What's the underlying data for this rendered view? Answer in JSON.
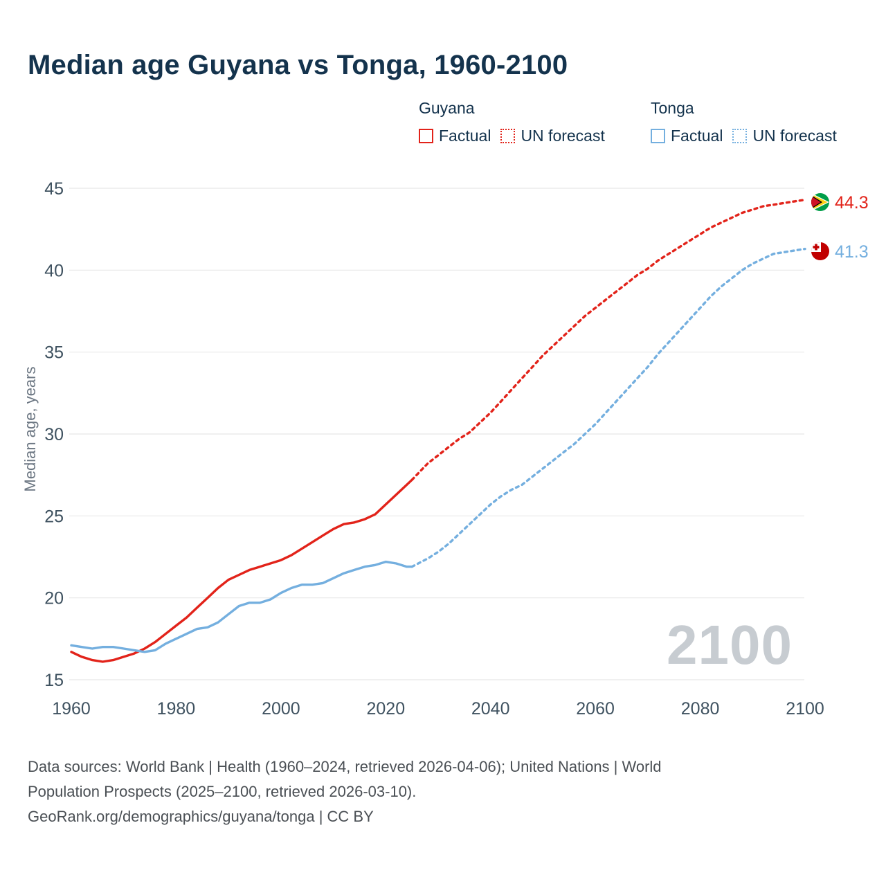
{
  "title": "Median age Guyana vs Tonga, 1960-2100",
  "legend": {
    "groups": [
      {
        "name": "Guyana",
        "color": "#e2231a",
        "items": [
          {
            "label": "Factual",
            "style": "solid"
          },
          {
            "label": "UN forecast",
            "style": "dashed"
          }
        ]
      },
      {
        "name": "Tonga",
        "color": "#74afdf",
        "items": [
          {
            "label": "Factual",
            "style": "solid"
          },
          {
            "label": "UN forecast",
            "style": "dashed"
          }
        ]
      }
    ]
  },
  "y_axis_label": "Median age, years",
  "watermark": "2100",
  "end_labels": [
    {
      "country": "Guyana",
      "value": "44.3",
      "color": "#e2231a"
    },
    {
      "country": "Tonga",
      "value": "41.3",
      "color": "#74afdf"
    }
  ],
  "footer": {
    "lines": [
      "Data sources: World Bank | Health (1960–2024, retrieved 2026-04-06); United Nations | World",
      "Population Prospects (2025–2100, retrieved 2026-03-10).",
      "GeoRank.org/demographics/guyana/tonga | CC BY"
    ]
  },
  "chart_data": {
    "type": "line",
    "title": "Median age Guyana vs Tonga, 1960-2100",
    "xlabel": "",
    "ylabel": "Median age, years",
    "xlim": [
      1955,
      2110
    ],
    "ylim": [
      15,
      45
    ],
    "x_ticks": [
      1960,
      1980,
      2000,
      2020,
      2040,
      2060,
      2080,
      2100
    ],
    "y_ticks": [
      15,
      20,
      25,
      30,
      35,
      40,
      45
    ],
    "grid": "horizontal",
    "legend_position": "top-right",
    "series": [
      {
        "name": "Guyana Factual",
        "color": "#e2231a",
        "style": "solid",
        "points": [
          [
            1960,
            16.7
          ],
          [
            1962,
            16.4
          ],
          [
            1964,
            16.2
          ],
          [
            1966,
            16.1
          ],
          [
            1968,
            16.2
          ],
          [
            1970,
            16.4
          ],
          [
            1972,
            16.6
          ],
          [
            1974,
            16.9
          ],
          [
            1976,
            17.3
          ],
          [
            1978,
            17.8
          ],
          [
            1980,
            18.3
          ],
          [
            1982,
            18.8
          ],
          [
            1984,
            19.4
          ],
          [
            1986,
            20.0
          ],
          [
            1988,
            20.6
          ],
          [
            1990,
            21.1
          ],
          [
            1992,
            21.4
          ],
          [
            1994,
            21.7
          ],
          [
            1996,
            21.9
          ],
          [
            1998,
            22.1
          ],
          [
            2000,
            22.3
          ],
          [
            2002,
            22.6
          ],
          [
            2004,
            23.0
          ],
          [
            2006,
            23.4
          ],
          [
            2008,
            23.8
          ],
          [
            2010,
            24.2
          ],
          [
            2012,
            24.5
          ],
          [
            2014,
            24.6
          ],
          [
            2016,
            24.8
          ],
          [
            2018,
            25.1
          ],
          [
            2020,
            25.7
          ],
          [
            2022,
            26.3
          ],
          [
            2024,
            26.9
          ],
          [
            2025,
            27.2
          ]
        ]
      },
      {
        "name": "Guyana UN forecast",
        "color": "#e2231a",
        "style": "dashed",
        "points": [
          [
            2025,
            27.2
          ],
          [
            2028,
            28.2
          ],
          [
            2030,
            28.7
          ],
          [
            2032,
            29.2
          ],
          [
            2034,
            29.7
          ],
          [
            2036,
            30.1
          ],
          [
            2038,
            30.7
          ],
          [
            2040,
            31.3
          ],
          [
            2042,
            32.0
          ],
          [
            2044,
            32.7
          ],
          [
            2046,
            33.4
          ],
          [
            2048,
            34.1
          ],
          [
            2050,
            34.8
          ],
          [
            2052,
            35.4
          ],
          [
            2054,
            36.0
          ],
          [
            2056,
            36.6
          ],
          [
            2058,
            37.2
          ],
          [
            2060,
            37.7
          ],
          [
            2062,
            38.2
          ],
          [
            2064,
            38.7
          ],
          [
            2066,
            39.2
          ],
          [
            2068,
            39.7
          ],
          [
            2070,
            40.1
          ],
          [
            2072,
            40.6
          ],
          [
            2074,
            41.0
          ],
          [
            2076,
            41.4
          ],
          [
            2078,
            41.8
          ],
          [
            2080,
            42.2
          ],
          [
            2082,
            42.6
          ],
          [
            2084,
            42.9
          ],
          [
            2086,
            43.2
          ],
          [
            2088,
            43.5
          ],
          [
            2090,
            43.7
          ],
          [
            2092,
            43.9
          ],
          [
            2094,
            44.0
          ],
          [
            2096,
            44.1
          ],
          [
            2098,
            44.2
          ],
          [
            2100,
            44.3
          ]
        ]
      },
      {
        "name": "Tonga Factual",
        "color": "#74afdf",
        "style": "solid",
        "points": [
          [
            1960,
            17.1
          ],
          [
            1962,
            17.0
          ],
          [
            1964,
            16.9
          ],
          [
            1966,
            17.0
          ],
          [
            1968,
            17.0
          ],
          [
            1970,
            16.9
          ],
          [
            1972,
            16.8
          ],
          [
            1974,
            16.7
          ],
          [
            1976,
            16.8
          ],
          [
            1978,
            17.2
          ],
          [
            1980,
            17.5
          ],
          [
            1982,
            17.8
          ],
          [
            1984,
            18.1
          ],
          [
            1986,
            18.2
          ],
          [
            1988,
            18.5
          ],
          [
            1990,
            19.0
          ],
          [
            1992,
            19.5
          ],
          [
            1994,
            19.7
          ],
          [
            1996,
            19.7
          ],
          [
            1998,
            19.9
          ],
          [
            2000,
            20.3
          ],
          [
            2002,
            20.6
          ],
          [
            2004,
            20.8
          ],
          [
            2006,
            20.8
          ],
          [
            2008,
            20.9
          ],
          [
            2010,
            21.2
          ],
          [
            2012,
            21.5
          ],
          [
            2014,
            21.7
          ],
          [
            2016,
            21.9
          ],
          [
            2018,
            22.0
          ],
          [
            2020,
            22.2
          ],
          [
            2022,
            22.1
          ],
          [
            2024,
            21.9
          ],
          [
            2025,
            21.9
          ]
        ]
      },
      {
        "name": "Tonga UN forecast",
        "color": "#74afdf",
        "style": "dashed",
        "points": [
          [
            2025,
            21.9
          ],
          [
            2028,
            22.4
          ],
          [
            2030,
            22.8
          ],
          [
            2032,
            23.3
          ],
          [
            2034,
            23.9
          ],
          [
            2036,
            24.5
          ],
          [
            2038,
            25.1
          ],
          [
            2040,
            25.7
          ],
          [
            2042,
            26.2
          ],
          [
            2044,
            26.6
          ],
          [
            2046,
            26.9
          ],
          [
            2048,
            27.4
          ],
          [
            2050,
            27.9
          ],
          [
            2052,
            28.4
          ],
          [
            2054,
            28.9
          ],
          [
            2056,
            29.4
          ],
          [
            2058,
            30.0
          ],
          [
            2060,
            30.6
          ],
          [
            2062,
            31.3
          ],
          [
            2064,
            32.0
          ],
          [
            2066,
            32.7
          ],
          [
            2068,
            33.4
          ],
          [
            2070,
            34.1
          ],
          [
            2072,
            34.9
          ],
          [
            2074,
            35.6
          ],
          [
            2076,
            36.3
          ],
          [
            2078,
            37.0
          ],
          [
            2080,
            37.7
          ],
          [
            2082,
            38.4
          ],
          [
            2084,
            39.0
          ],
          [
            2086,
            39.5
          ],
          [
            2088,
            40.0
          ],
          [
            2090,
            40.4
          ],
          [
            2092,
            40.7
          ],
          [
            2094,
            41.0
          ],
          [
            2096,
            41.1
          ],
          [
            2098,
            41.2
          ],
          [
            2100,
            41.3
          ]
        ]
      }
    ]
  }
}
